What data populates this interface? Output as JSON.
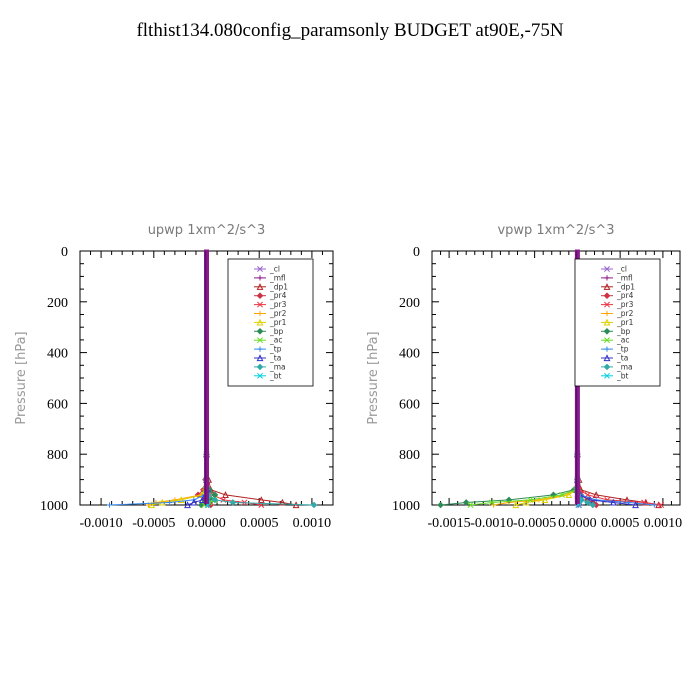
{
  "title": "flthist134.080config_paramsonly  BUDGET at90E,-75N",
  "legend_entries": [
    "_cl",
    "_mfl",
    "_dp1",
    "_pr4",
    "_pr3",
    "_pr2",
    "_pr1",
    "_bp",
    "_ac",
    "_tp",
    "_ta",
    "_ma",
    "_bt"
  ],
  "legend_colors": [
    "#9966cc",
    "#8b1a8b",
    "#b22222",
    "#cc3344",
    "#ee3344",
    "#ffa500",
    "#e0d000",
    "#2e8b57",
    "#66dd22",
    "#3388ee",
    "#3333cc",
    "#33aaaa",
    "#00d0e0"
  ],
  "chart_data": [
    {
      "type": "line",
      "title": "upwp  1xm^2/s^3",
      "xlabel": "",
      "ylabel": "Pressure [hPa]",
      "xlim": [
        -0.0012,
        0.0012
      ],
      "ylim": [
        1000,
        0
      ],
      "yticks": [
        0,
        200,
        400,
        600,
        800,
        1000
      ],
      "xticks": [
        -0.001,
        -0.0005,
        0.0,
        0.0005,
        0.001
      ],
      "xtick_labels": [
        "-0.0010",
        "-0.0005",
        "0.0000",
        "0.0005",
        "0.0010"
      ],
      "legend_position": "top-right",
      "pressure": [
        0,
        100,
        200,
        300,
        400,
        500,
        600,
        700,
        800,
        900,
        940,
        960,
        980,
        990,
        1000
      ],
      "series": [
        {
          "name": "_cl",
          "values": [
            0,
            0,
            0,
            0,
            0,
            0,
            0,
            0,
            0,
            0,
            0,
            0,
            2e-05,
            3e-05,
            2e-05
          ]
        },
        {
          "name": "_mfl",
          "values": [
            0,
            0,
            0,
            0,
            0,
            0,
            0,
            0,
            0,
            0,
            -1e-05,
            2e-05,
            4e-05,
            3e-05,
            2e-05
          ]
        },
        {
          "name": "_dp1",
          "values": [
            0,
            0,
            0,
            0,
            0,
            0,
            0,
            0,
            0,
            2e-05,
            4e-05,
            0.00018,
            0.00052,
            0.00072,
            0.00085
          ]
        },
        {
          "name": "_pr4",
          "values": [
            0,
            0,
            0,
            0,
            0,
            0,
            0,
            0,
            0,
            -1e-05,
            -3e-05,
            -8e-05,
            -2e-05,
            3e-05,
            4e-05
          ]
        },
        {
          "name": "_pr3",
          "values": [
            0,
            0,
            0,
            0,
            0,
            0,
            0,
            0,
            0,
            0,
            2e-05,
            6e-05,
            0.00016,
            0.00036,
            0.00052
          ]
        },
        {
          "name": "_pr2",
          "values": [
            0,
            0,
            0,
            0,
            0,
            0,
            0,
            0,
            0,
            0,
            -2e-05,
            -5e-05,
            -0.0003,
            -0.00048,
            -0.00055
          ]
        },
        {
          "name": "_pr1",
          "values": [
            0,
            0,
            0,
            0,
            0,
            0,
            0,
            0,
            0,
            0,
            1e-05,
            -3e-05,
            -0.00024,
            -0.00042,
            -0.00052
          ]
        },
        {
          "name": "_bp",
          "values": [
            0,
            0,
            0,
            0,
            0,
            0,
            0,
            0,
            0,
            0,
            3e-05,
            8e-05,
            4e-05,
            -2e-05,
            -5e-05
          ]
        },
        {
          "name": "_ac",
          "values": [
            0,
            0,
            0,
            0,
            0,
            0,
            0,
            0,
            0,
            0,
            -1e-05,
            2e-05,
            8e-05,
            3e-05,
            -2e-05
          ]
        },
        {
          "name": "_tp",
          "values": [
            0,
            0,
            0,
            0,
            0,
            0,
            0,
            0,
            0,
            0,
            0,
            -2e-05,
            -0.00012,
            -0.00035,
            -0.00092
          ]
        },
        {
          "name": "_ta",
          "values": [
            0,
            0,
            0,
            0,
            0,
            0,
            0,
            0,
            0,
            0,
            1e-05,
            -1e-05,
            -4e-05,
            -0.00012,
            -0.00018
          ]
        },
        {
          "name": "_ma",
          "values": [
            0,
            0,
            0,
            0,
            0,
            0,
            0,
            0,
            0,
            0,
            0,
            2e-05,
            8e-05,
            0.00025,
            0.00102
          ]
        },
        {
          "name": "_bt",
          "values": [
            0,
            0,
            0,
            0,
            0,
            0,
            0,
            0,
            0,
            0,
            0,
            0,
            1e-05,
            1e-05,
            1e-05
          ]
        }
      ]
    },
    {
      "type": "line",
      "title": "vpwp  1xm^2/s^3",
      "xlabel": "",
      "ylabel": "Pressure [hPa]",
      "xlim": [
        -0.0017,
        0.0012
      ],
      "ylim": [
        1000,
        0
      ],
      "yticks": [
        0,
        200,
        400,
        600,
        800,
        1000
      ],
      "xticks": [
        -0.0015,
        -0.001,
        -0.0005,
        0.0,
        0.0005,
        0.001
      ],
      "xtick_labels": [
        "-0.0015",
        "-0.0010",
        "-0.0005",
        "0.0000",
        "0.0005",
        "0.0010"
      ],
      "legend_position": "top-right",
      "pressure": [
        0,
        100,
        200,
        300,
        400,
        500,
        600,
        700,
        800,
        900,
        940,
        960,
        980,
        990,
        1000
      ],
      "series": [
        {
          "name": "_cl",
          "values": [
            0,
            0,
            0,
            0,
            0,
            0,
            0,
            0,
            0,
            0,
            0,
            0,
            2e-05,
            3e-05,
            2e-05
          ]
        },
        {
          "name": "_mfl",
          "values": [
            0,
            0,
            0,
            0,
            0,
            0,
            0,
            0,
            0,
            0,
            -1e-05,
            2e-05,
            3e-05,
            2e-05,
            1e-05
          ]
        },
        {
          "name": "_dp1",
          "values": [
            0,
            0,
            0,
            0,
            0,
            0,
            0,
            0,
            0,
            2e-05,
            4e-05,
            0.00022,
            0.00058,
            0.0008,
            0.00095
          ]
        },
        {
          "name": "_pr4",
          "values": [
            0,
            0,
            0,
            0,
            0,
            0,
            0,
            0,
            0,
            0,
            -2e-05,
            4e-05,
            0.00012,
            0.00018,
            0.00022
          ]
        },
        {
          "name": "_pr3",
          "values": [
            0,
            0,
            0,
            0,
            0,
            0,
            0,
            0,
            0,
            0,
            2e-05,
            0.00012,
            0.00035,
            0.00078,
            0.00098
          ]
        },
        {
          "name": "_pr2",
          "values": [
            0,
            0,
            0,
            0,
            0,
            0,
            0,
            0,
            0,
            0,
            -3e-05,
            -0.00012,
            -0.00045,
            -0.0008,
            -0.00098
          ]
        },
        {
          "name": "_pr1",
          "values": [
            0,
            0,
            0,
            0,
            0,
            0,
            0,
            0,
            0,
            0,
            -2e-05,
            -0.0001,
            -0.00038,
            -0.0006,
            -0.00072
          ]
        },
        {
          "name": "_bp",
          "values": [
            0,
            0,
            0,
            0,
            0,
            0,
            0,
            0,
            0,
            0,
            -4e-05,
            -0.00028,
            -0.0008,
            -0.0013,
            -0.0016
          ]
        },
        {
          "name": "_ac",
          "values": [
            0,
            0,
            0,
            0,
            0,
            0,
            0,
            0,
            0,
            0,
            -2e-05,
            -0.00018,
            -0.00055,
            -0.001,
            -0.00125
          ]
        },
        {
          "name": "_tp",
          "values": [
            0,
            0,
            0,
            0,
            0,
            0,
            0,
            0,
            0,
            0,
            1e-05,
            4e-05,
            0.00022,
            0.0006,
            0.0009
          ]
        },
        {
          "name": "_ta",
          "values": [
            0,
            0,
            0,
            0,
            0,
            0,
            0,
            0,
            0,
            0,
            0,
            3e-05,
            0.00015,
            0.00042,
            0.00068
          ]
        },
        {
          "name": "_ma",
          "values": [
            0,
            0,
            0,
            0,
            0,
            0,
            0,
            0,
            0,
            0,
            0,
            1e-05,
            5e-05,
            0.00012,
            0.00018
          ]
        },
        {
          "name": "_bt",
          "values": [
            0,
            0,
            0,
            0,
            0,
            0,
            0,
            0,
            0,
            0,
            0,
            0,
            1e-05,
            1e-05,
            1e-05
          ]
        }
      ]
    }
  ]
}
